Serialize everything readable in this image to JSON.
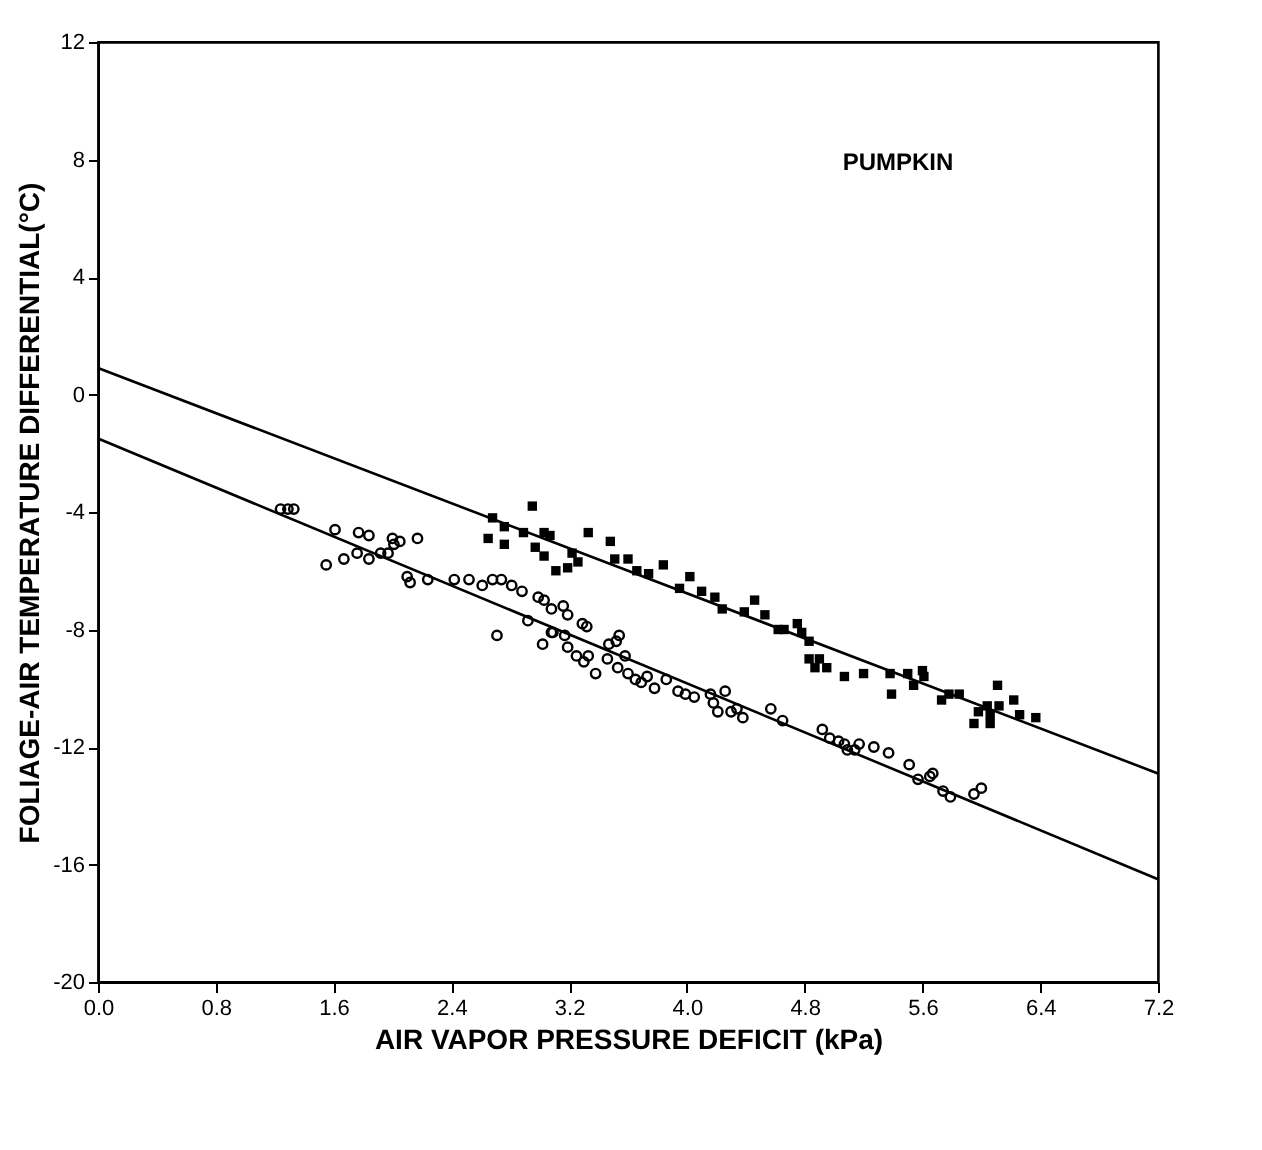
{
  "chart_data": {
    "type": "scatter",
    "xlabel": "AIR VAPOR PRESSURE DEFICIT (kPa)",
    "ylabel": "FOLIAGE-AIR TEMPERATURE DIFFERENTIAL(°C)",
    "annotations": [
      "PUMPKIN"
    ],
    "xlim": [
      0,
      7.2
    ],
    "xticks": [
      {
        "value": 0,
        "label": "0.0"
      },
      {
        "value": 0.8,
        "label": "0.8"
      },
      {
        "value": 1.6,
        "label": "1.6"
      },
      {
        "value": 2.4,
        "label": "2.4"
      },
      {
        "value": 3.2,
        "label": "3.2"
      },
      {
        "value": 4.0,
        "label": "4.0"
      },
      {
        "value": 4.8,
        "label": "4.8"
      },
      {
        "value": 5.6,
        "label": "5.6"
      },
      {
        "value": 6.4,
        "label": "6.4"
      },
      {
        "value": 7.2,
        "label": "7.2"
      }
    ],
    "ylim": [
      -20,
      12
    ],
    "yticks": [
      -20,
      -16,
      -12,
      -8,
      -4,
      0,
      4,
      8,
      12
    ],
    "grid": false,
    "series": [
      {
        "marker": "circle",
        "color": "#000000",
        "x": [
          6.0,
          5.95,
          5.79,
          5.74,
          5.67,
          5.65,
          5.57,
          5.51,
          5.37,
          5.27,
          5.17,
          5.14,
          5.09,
          5.07,
          5.03,
          4.97,
          4.92,
          4.65,
          4.57,
          4.38,
          4.34,
          4.3,
          4.26,
          4.21,
          4.18,
          4.16,
          4.05,
          3.99,
          3.94,
          3.86,
          3.78,
          3.73,
          3.69,
          3.65,
          3.6,
          3.58,
          3.53,
          3.54,
          3.52,
          3.47,
          3.46,
          3.38,
          3.33,
          3.3,
          3.25,
          3.19,
          3.17,
          3.09,
          3.08,
          3.02,
          2.92,
          3.32,
          3.29,
          3.19,
          3.16,
          3.08,
          3.03,
          2.99,
          2.88,
          2.81,
          2.74,
          2.71,
          2.68,
          2.61,
          2.52,
          2.42,
          2.24,
          2.12,
          2.1,
          2.17,
          2.05,
          2.01,
          2.0,
          1.97,
          1.92,
          1.84,
          1.84,
          1.76,
          1.77,
          1.67,
          1.61,
          1.55,
          1.33,
          1.29,
          1.24
        ],
        "values": [
          -13.4,
          -13.6,
          -13.7,
          -13.5,
          -12.9,
          -13.0,
          -13.1,
          -12.6,
          -12.2,
          -12.0,
          -11.9,
          -12.1,
          -12.1,
          -11.9,
          -11.8,
          -11.7,
          -11.4,
          -11.1,
          -10.7,
          -11.0,
          -10.7,
          -10.8,
          -10.1,
          -10.8,
          -10.5,
          -10.2,
          -10.3,
          -10.2,
          -10.1,
          -9.7,
          -10.0,
          -9.6,
          -9.8,
          -9.7,
          -9.5,
          -8.9,
          -9.3,
          -8.2,
          -8.4,
          -8.5,
          -9.0,
          -9.5,
          -8.9,
          -9.1,
          -8.9,
          -8.6,
          -8.2,
          -8.1,
          -8.1,
          -8.5,
          -7.7,
          -7.9,
          -7.8,
          -7.5,
          -7.2,
          -7.3,
          -7.0,
          -6.9,
          -6.7,
          -6.5,
          -6.3,
          -8.2,
          -6.3,
          -6.5,
          -6.3,
          -6.3,
          -6.3,
          -6.4,
          -6.2,
          -4.9,
          -5.0,
          -5.1,
          -4.9,
          -5.4,
          -5.4,
          -5.6,
          -4.8,
          -5.4,
          -4.7,
          -5.6,
          -4.6,
          -5.8,
          -3.9,
          -3.9,
          -3.9
        ]
      },
      {
        "marker": "square",
        "color": "#000000",
        "x": [
          6.37,
          6.26,
          6.22,
          6.12,
          6.11,
          6.06,
          6.06,
          6.04,
          5.98,
          5.95,
          5.85,
          5.78,
          5.73,
          5.61,
          5.6,
          5.54,
          5.5,
          5.39,
          5.38,
          5.2,
          5.07,
          4.95,
          4.9,
          4.87,
          4.83,
          4.83,
          4.78,
          4.75,
          4.66,
          4.62,
          4.53,
          4.46,
          4.39,
          4.24,
          4.19,
          4.1,
          4.02,
          3.95,
          3.84,
          3.74,
          3.66,
          3.6,
          3.51,
          3.48,
          3.33,
          3.26,
          3.22,
          3.19,
          3.11,
          3.07,
          3.03,
          3.03,
          2.97,
          2.95,
          2.89,
          2.76,
          2.76,
          2.68,
          2.65
        ],
        "values": [
          -11.0,
          -10.9,
          -10.4,
          -10.6,
          -9.9,
          -11.2,
          -10.9,
          -10.6,
          -10.8,
          -11.2,
          -10.2,
          -10.2,
          -10.4,
          -9.6,
          -9.4,
          -9.9,
          -9.5,
          -10.2,
          -9.5,
          -9.5,
          -9.6,
          -9.3,
          -9.0,
          -9.3,
          -9.0,
          -8.4,
          -8.1,
          -7.8,
          -8.0,
          -8.0,
          -7.5,
          -7.0,
          -7.4,
          -7.3,
          -6.9,
          -6.7,
          -6.2,
          -6.6,
          -5.8,
          -6.1,
          -6.0,
          -5.6,
          -5.6,
          -5.0,
          -4.7,
          -5.7,
          -5.4,
          -5.9,
          -6.0,
          -4.8,
          -5.5,
          -4.7,
          -5.2,
          -3.8,
          -4.7,
          -5.1,
          -4.5,
          -4.2,
          -4.9
        ]
      },
      {
        "type": "line",
        "marker": "none",
        "line_style": "solid",
        "color": "#000000",
        "x": [
          0,
          7.2
        ],
        "values": [
          -1.5,
          -16.5
        ]
      },
      {
        "type": "line",
        "marker": "none",
        "line_style": "solid",
        "color": "#000000",
        "x": [
          0,
          7.2
        ],
        "values": [
          0.9,
          -12.9
        ]
      }
    ]
  }
}
